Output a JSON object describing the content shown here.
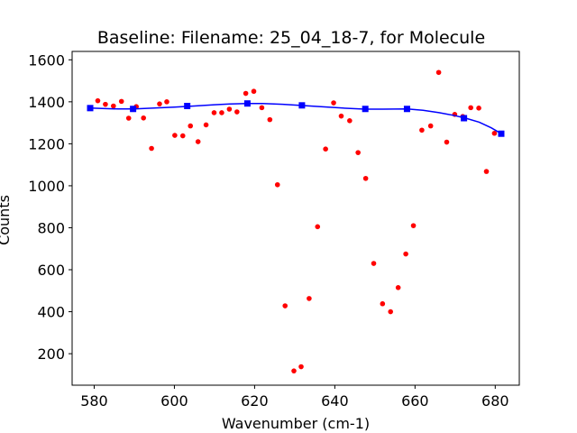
{
  "chart_data": {
    "type": "scatter",
    "title": "Baseline: Filename: 25_04_18-7, for Molecule",
    "xlabel": "Wavenumber (cm-1)",
    "ylabel": "Counts",
    "xlim": [
      574.5,
      686
    ],
    "ylim": [
      50,
      1640
    ],
    "xticks": [
      580,
      600,
      620,
      640,
      660,
      680
    ],
    "yticks": [
      200,
      400,
      600,
      800,
      1000,
      1200,
      1400,
      1600
    ],
    "grid": false,
    "series": [
      {
        "kind": "scatter",
        "color": "#ff0000",
        "marker": "circle",
        "points": [
          [
            579,
            1370
          ],
          [
            580.9,
            1405
          ],
          [
            582.8,
            1388
          ],
          [
            584.8,
            1380
          ],
          [
            586.8,
            1402
          ],
          [
            588.6,
            1322
          ],
          [
            590.5,
            1377
          ],
          [
            592.3,
            1323
          ],
          [
            594.3,
            1178
          ],
          [
            596.3,
            1390
          ],
          [
            598.1,
            1400
          ],
          [
            600.1,
            1240
          ],
          [
            602.1,
            1238
          ],
          [
            604,
            1285
          ],
          [
            605.9,
            1210
          ],
          [
            607.9,
            1290
          ],
          [
            609.9,
            1348
          ],
          [
            611.8,
            1348
          ],
          [
            613.7,
            1365
          ],
          [
            615.6,
            1352
          ],
          [
            617.8,
            1440
          ],
          [
            619.8,
            1450
          ],
          [
            621.8,
            1372
          ],
          [
            623.8,
            1315
          ],
          [
            625.7,
            1005
          ],
          [
            627.6,
            428
          ],
          [
            629.8,
            118
          ],
          [
            631.6,
            138
          ],
          [
            633.6,
            463
          ],
          [
            635.7,
            805
          ],
          [
            637.7,
            1175
          ],
          [
            639.7,
            1395
          ],
          [
            641.6,
            1332
          ],
          [
            643.7,
            1310
          ],
          [
            645.8,
            1158
          ],
          [
            647.7,
            1035
          ],
          [
            649.7,
            630
          ],
          [
            651.9,
            438
          ],
          [
            653.9,
            400
          ],
          [
            655.8,
            515
          ],
          [
            657.7,
            675
          ],
          [
            659.6,
            810
          ],
          [
            661.7,
            1265
          ],
          [
            663.9,
            1285
          ],
          [
            665.9,
            1540
          ],
          [
            667.9,
            1208
          ],
          [
            669.9,
            1340
          ],
          [
            671.9,
            1330
          ],
          [
            673.9,
            1372
          ],
          [
            675.9,
            1370
          ],
          [
            677.8,
            1068
          ],
          [
            679.8,
            1250
          ]
        ]
      },
      {
        "kind": "line",
        "color": "#0000ff",
        "points": [
          [
            579,
            1370
          ],
          [
            582,
            1368
          ],
          [
            586,
            1366
          ],
          [
            590,
            1366
          ],
          [
            595,
            1370
          ],
          [
            600,
            1375
          ],
          [
            605,
            1380
          ],
          [
            610,
            1386
          ],
          [
            614,
            1390
          ],
          [
            618,
            1392
          ],
          [
            622,
            1392
          ],
          [
            627,
            1388
          ],
          [
            632,
            1382
          ],
          [
            637,
            1376
          ],
          [
            642,
            1370
          ],
          [
            647.5,
            1365
          ],
          [
            652,
            1365
          ],
          [
            658,
            1366
          ],
          [
            662,
            1360
          ],
          [
            666,
            1348
          ],
          [
            670,
            1334
          ],
          [
            673,
            1320
          ],
          [
            676,
            1303
          ],
          [
            679,
            1276
          ],
          [
            681.5,
            1248
          ]
        ]
      },
      {
        "kind": "scatter",
        "color": "#0000ff",
        "marker": "square",
        "points": [
          [
            579,
            1370
          ],
          [
            589.7,
            1366
          ],
          [
            603.2,
            1380
          ],
          [
            618.2,
            1392
          ],
          [
            631.8,
            1383
          ],
          [
            647.6,
            1366
          ],
          [
            658,
            1366
          ],
          [
            672.2,
            1322
          ],
          [
            681.5,
            1248
          ]
        ]
      }
    ]
  }
}
